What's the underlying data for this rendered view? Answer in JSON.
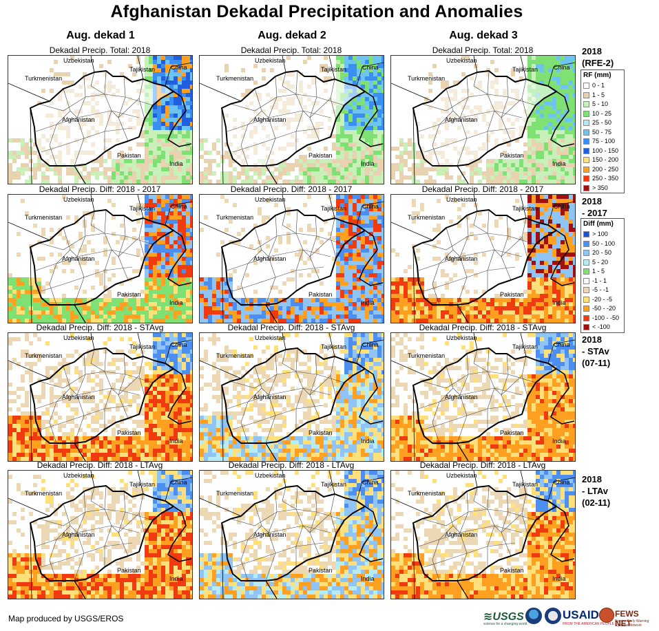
{
  "title": "Afghanistan Dekadal Precipitation and Anomalies",
  "columns": [
    "Aug. dekad 1",
    "Aug. dekad 2",
    "Aug. dekad 3"
  ],
  "rows": [
    {
      "panel_title": "Dekadal Precip. Total: 2018",
      "label_lines": [
        "2018",
        "(RFE-2)"
      ]
    },
    {
      "panel_title": "Dekadal Precip. Diff: 2018 - 2017",
      "label_lines": [
        "2018",
        "- 2017"
      ]
    },
    {
      "panel_title": "Dekadal Precip. Diff: 2018 - STAvg",
      "label_lines": [
        "2018",
        "- STAv",
        "(07-11)"
      ]
    },
    {
      "panel_title": "Dekadal Precip. Diff: 2018 - LTAvg",
      "label_lines": [
        "2018",
        "- LTAv",
        "(02-11)"
      ]
    }
  ],
  "country_labels": {
    "uzbekistan": "Uzbekistan",
    "tajikistan": "Tajikistan",
    "china": "China",
    "turkmenistan": "Turkmenistan",
    "afghanistan": "Afghanistan",
    "pakistan": "Pakistan",
    "india": "India"
  },
  "legend_rf": {
    "title": "RF (mm)",
    "items": [
      {
        "label": "0 - 1",
        "color": "#ffffff"
      },
      {
        "label": "1 - 5",
        "color": "#e8d2b0"
      },
      {
        "label": "5 - 10",
        "color": "#c8f0b8"
      },
      {
        "label": "10 - 25",
        "color": "#7fe073"
      },
      {
        "label": "25 - 50",
        "color": "#b4e8f4"
      },
      {
        "label": "50 - 75",
        "color": "#6ec4f0"
      },
      {
        "label": "75 - 100",
        "color": "#3b8ff0"
      },
      {
        "label": "100 - 150",
        "color": "#1f5fe0"
      },
      {
        "label": "150 - 200",
        "color": "#ffe27a"
      },
      {
        "label": "200 - 250",
        "color": "#ffa020"
      },
      {
        "label": "250 - 350",
        "color": "#f03a10"
      },
      {
        "label": "> 350",
        "color": "#a01010"
      }
    ]
  },
  "legend_diff": {
    "title": "Diff (mm)",
    "items": [
      {
        "label": "> 100",
        "color": "#2050d8"
      },
      {
        "label": "50 - 100",
        "color": "#4c8ff0"
      },
      {
        "label": "20 - 50",
        "color": "#90c4f4"
      },
      {
        "label": "5 - 20",
        "color": "#b8ecf4"
      },
      {
        "label": "1 - 5",
        "color": "#7fe073"
      },
      {
        "label": "-1 - 1",
        "color": "#ffffff"
      },
      {
        "label": "-5 - -1",
        "color": "#ecd8b4"
      },
      {
        "label": "-20 - -5",
        "color": "#ffe07a"
      },
      {
        "label": "-50 - -20",
        "color": "#ffa020"
      },
      {
        "label": "-100 - -50",
        "color": "#f03a10"
      },
      {
        "label": "< -100",
        "color": "#a01010"
      }
    ]
  },
  "footer": "Map produced by USGS/EROS",
  "logos": {
    "usgs": "≋USGS",
    "usgs_tag": "science for a changing world",
    "usaid": "USAID",
    "usaid_tag": "FROM THE AMERICAN PEOPLE",
    "fews": "FEWS NET",
    "fews_tag": "Famine Early Warning Systems Network"
  }
}
